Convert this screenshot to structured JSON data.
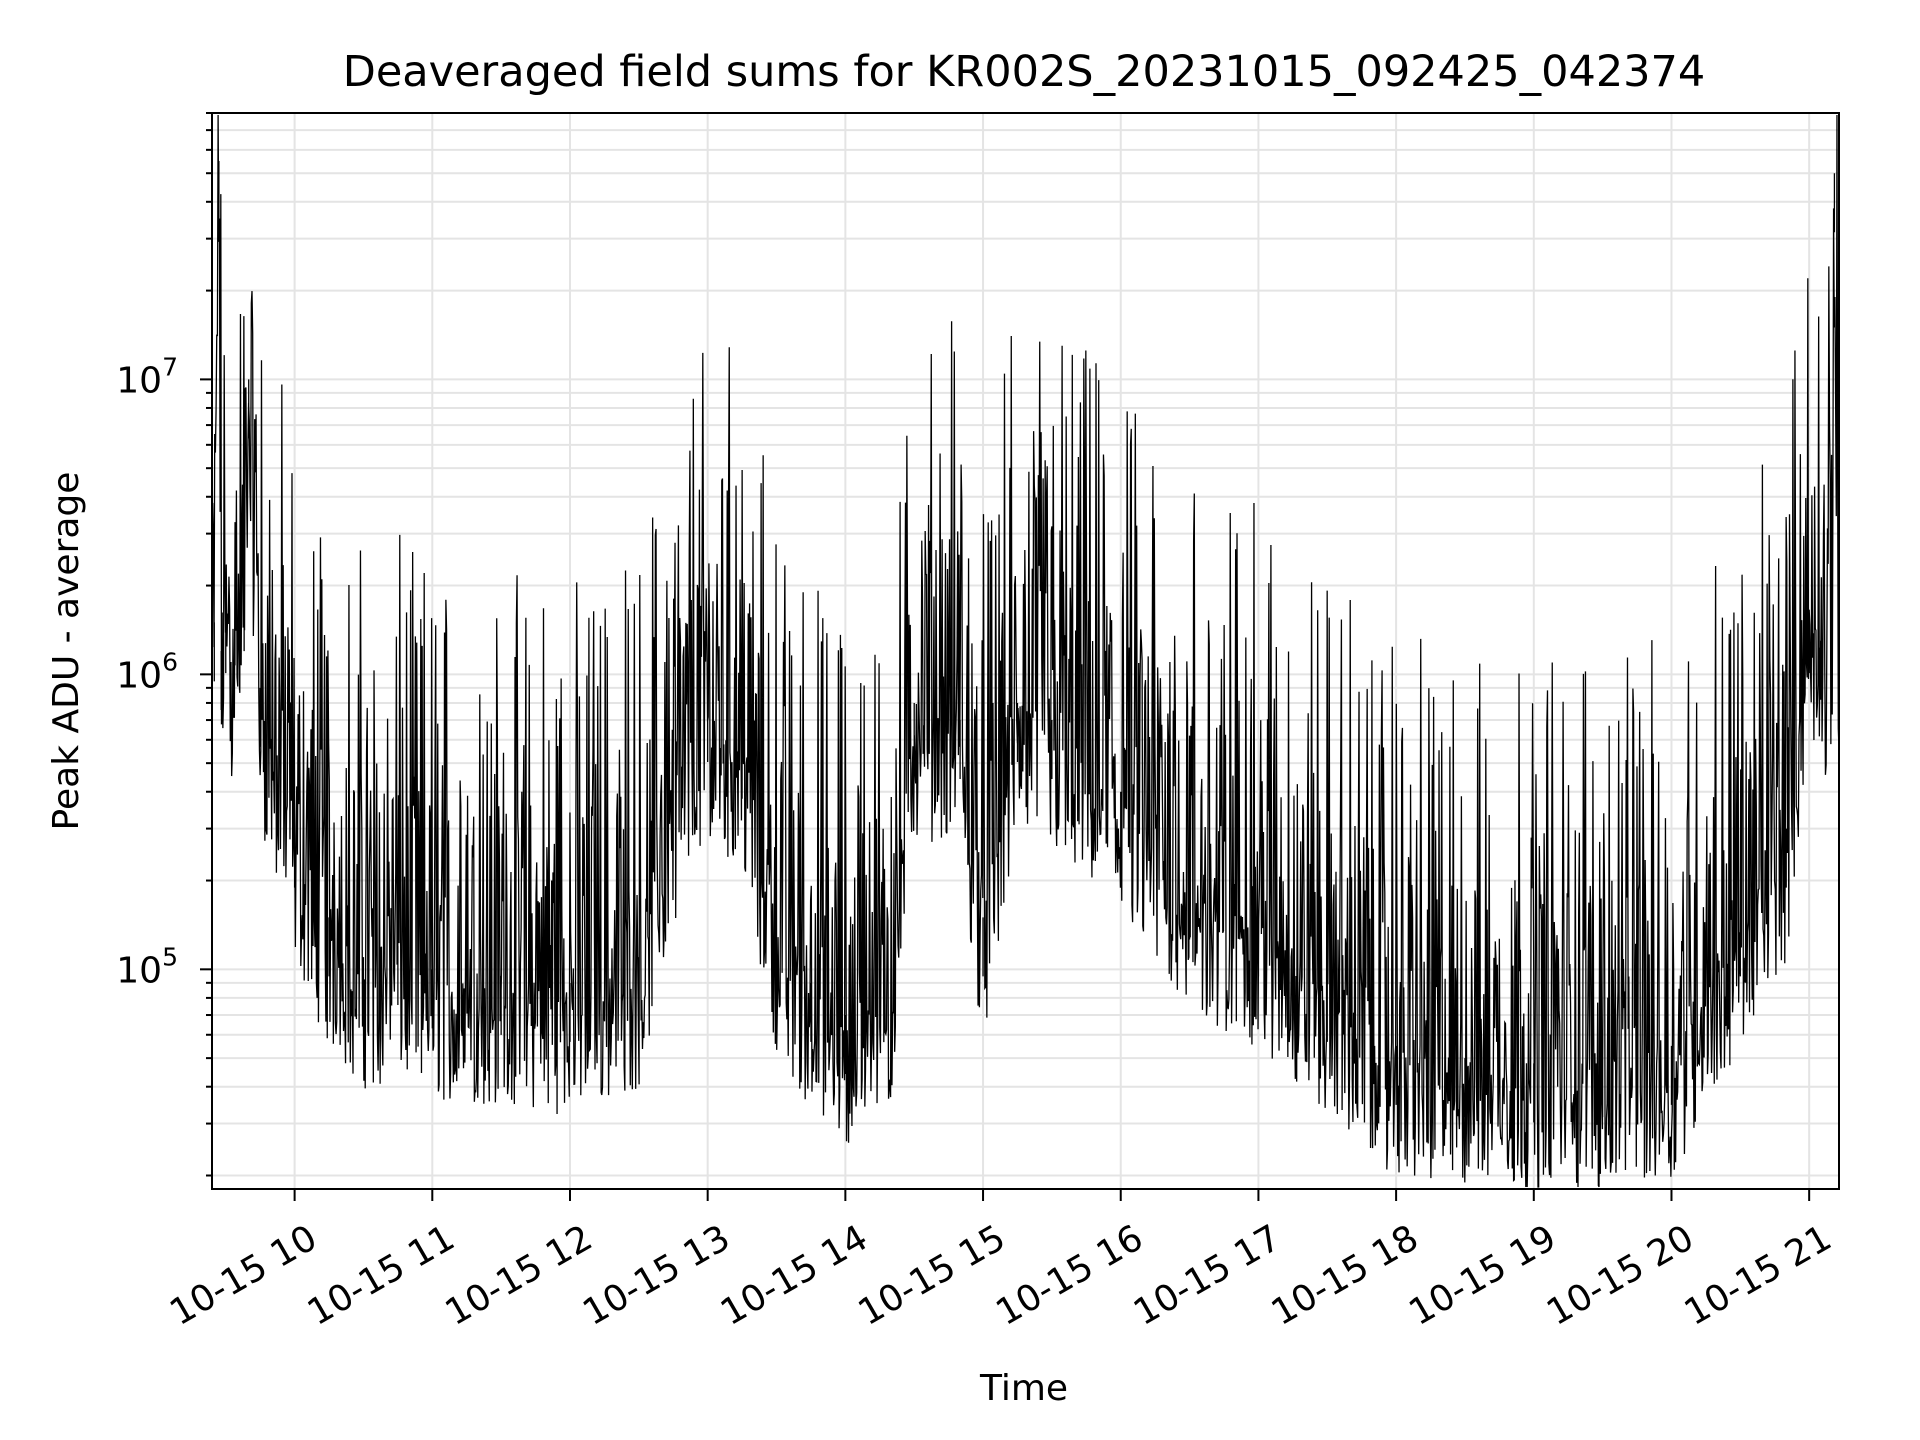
{
  "chart_data": {
    "type": "line",
    "title": "Deaveraged field sums for KR002S_20231015_092425_042374",
    "xlabel": "Time",
    "ylabel": "Peak ADU - average",
    "yscale": "log",
    "ylim": [
      18000,
      80000000
    ],
    "xlim": [
      "2023-10-15 09:24",
      "2023-10-15 21:13"
    ],
    "grid": true,
    "line_color": "#000000",
    "grid_color": "#e4e4e4",
    "x_ticks": [
      {
        "value": "2023-10-15 10:00",
        "label": "10-15 10"
      },
      {
        "value": "2023-10-15 11:00",
        "label": "10-15 11"
      },
      {
        "value": "2023-10-15 12:00",
        "label": "10-15 12"
      },
      {
        "value": "2023-10-15 13:00",
        "label": "10-15 13"
      },
      {
        "value": "2023-10-15 14:00",
        "label": "10-15 14"
      },
      {
        "value": "2023-10-15 15:00",
        "label": "10-15 15"
      },
      {
        "value": "2023-10-15 16:00",
        "label": "10-15 16"
      },
      {
        "value": "2023-10-15 17:00",
        "label": "10-15 17"
      },
      {
        "value": "2023-10-15 18:00",
        "label": "10-15 18"
      },
      {
        "value": "2023-10-15 19:00",
        "label": "10-15 19"
      },
      {
        "value": "2023-10-15 20:00",
        "label": "10-15 20"
      },
      {
        "value": "2023-10-15 21:00",
        "label": "10-15 21"
      }
    ],
    "y_ticks": [
      {
        "value": 100000,
        "base": "10",
        "exp": "5"
      },
      {
        "value": 1000000,
        "base": "10",
        "exp": "6"
      },
      {
        "value": 10000000,
        "base": "10",
        "exp": "7"
      }
    ],
    "series": [
      {
        "x": [
          "2023-10-15 09:24",
          "2023-10-15 09:25",
          "2023-10-15 09:27",
          "2023-10-15 09:28",
          "2023-10-15 09:30",
          "2023-10-15 09:32",
          "2023-10-15 09:34",
          "2023-10-15 09:36",
          "2023-10-15 09:38",
          "2023-10-15 09:40",
          "2023-10-15 09:45",
          "2023-10-15 09:50",
          "2023-10-15 10:00",
          "2023-10-15 10:15",
          "2023-10-15 10:30",
          "2023-10-15 10:45",
          "2023-10-15 11:00",
          "2023-10-15 11:30",
          "2023-10-15 12:00",
          "2023-10-15 12:30",
          "2023-10-15 12:45",
          "2023-10-15 13:00",
          "2023-10-15 13:15",
          "2023-10-15 13:30",
          "2023-10-15 13:45",
          "2023-10-15 14:00",
          "2023-10-15 14:20",
          "2023-10-15 14:30",
          "2023-10-15 14:50",
          "2023-10-15 15:00",
          "2023-10-15 15:15",
          "2023-10-15 15:30",
          "2023-10-15 16:00",
          "2023-10-15 16:30",
          "2023-10-15 17:00",
          "2023-10-15 17:30",
          "2023-10-15 18:00",
          "2023-10-15 18:30",
          "2023-10-15 19:00",
          "2023-10-15 19:30",
          "2023-10-15 20:00",
          "2023-10-15 20:30",
          "2023-10-15 20:50",
          "2023-10-15 21:00",
          "2023-10-15 21:05",
          "2023-10-15 21:10",
          "2023-10-15 21:11",
          "2023-10-15 21:13"
        ],
        "y": [
          800000,
          1500000,
          55000000,
          1200000,
          1600000,
          1100000,
          1700000,
          1400000,
          1900000,
          10000000,
          900000,
          600000,
          300000,
          150000,
          110000,
          120000,
          100000,
          95000,
          90000,
          110000,
          400000,
          800000,
          600000,
          150000,
          90000,
          70000,
          95000,
          800000,
          700000,
          150000,
          800000,
          700000,
          400000,
          200000,
          150000,
          90000,
          55000,
          50000,
          48000,
          50000,
          55000,
          150000,
          300000,
          1600000,
          1300000,
          1200000,
          50000000,
          900000
        ]
      }
    ]
  }
}
